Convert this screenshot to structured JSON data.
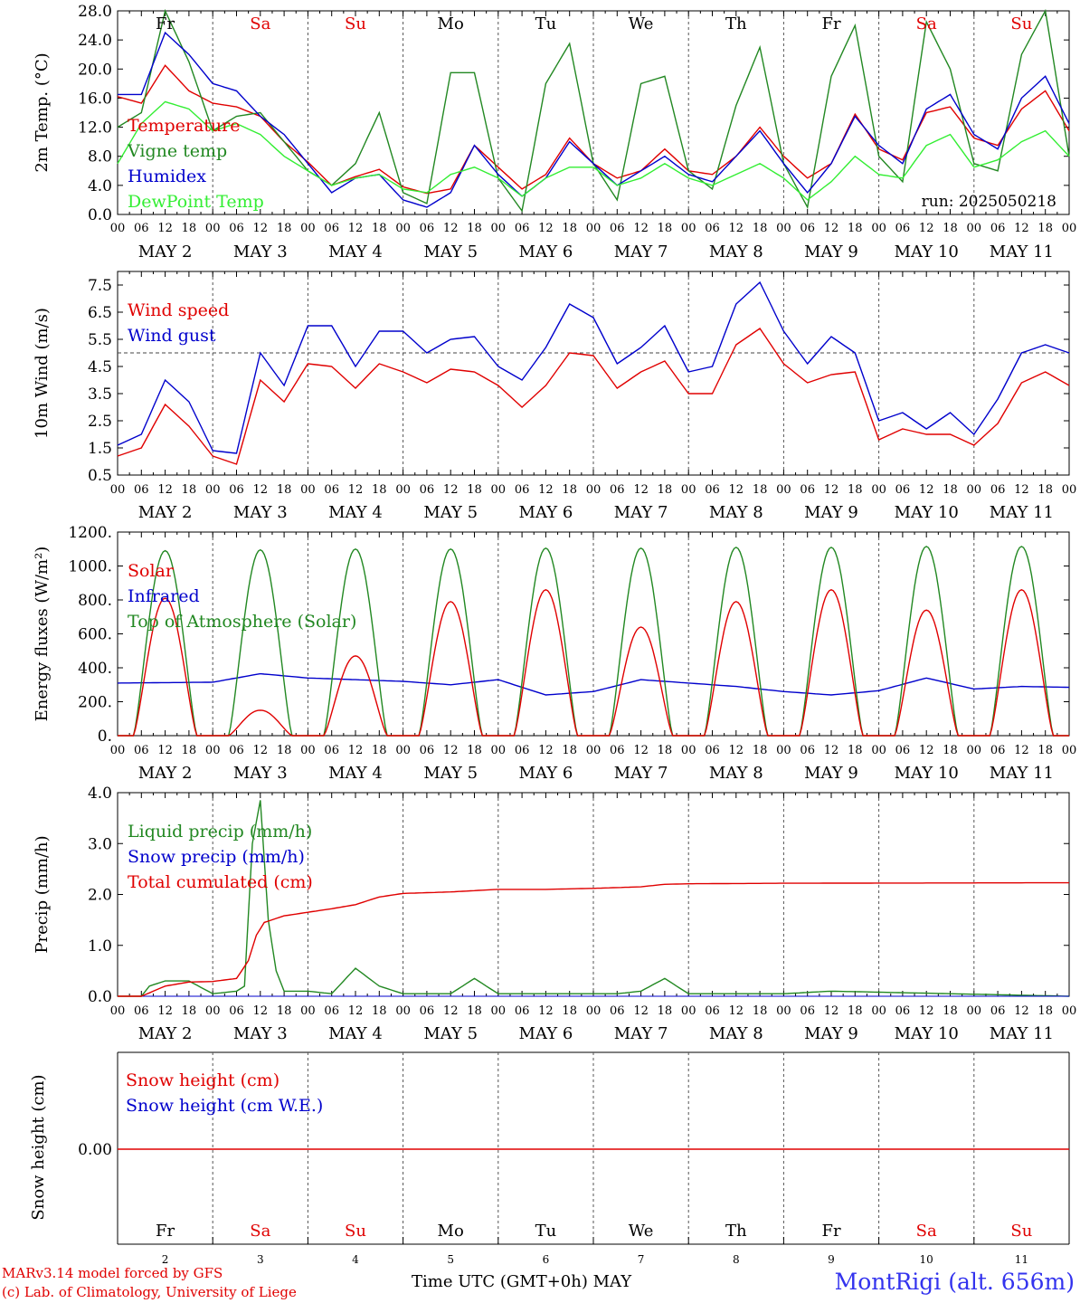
{
  "footer": {
    "model_line": "MARv3.14 model forced by GFS",
    "credit_line": "(c) Lab. of Climatology, University of Liege",
    "axis_title": "Time UTC (GMT+0h)",
    "month_label": "MAY",
    "station": "MontRigi (alt. 656m)"
  },
  "chart_data": [
    {
      "type": "line",
      "ylabel": "2m Temp. (°C)",
      "ylim": [
        0,
        28
      ],
      "yticks": [
        "0.0",
        "4.0",
        "8.0",
        "12.0",
        "16.0",
        "20.0",
        "24.0",
        "28.0"
      ],
      "grid": "vertical dashed at 00 UTC",
      "day_labels": [
        "Fr",
        "Sa",
        "Su",
        "Mo",
        "Tu",
        "We",
        "Th",
        "Fr",
        "Sa",
        "Su"
      ],
      "day_label_colors": [
        "#000000",
        "#e00000",
        "#e00000",
        "#000000",
        "#000000",
        "#000000",
        "#000000",
        "#000000",
        "#e00000",
        "#e00000"
      ],
      "date_labels": [
        "MAY 2",
        "MAY 3",
        "MAY 4",
        "MAY 5",
        "MAY 6",
        "MAY 7",
        "MAY 8",
        "MAY 9",
        "MAY 10",
        "MAY 11"
      ],
      "hour_ticks": [
        "00",
        "06",
        "12",
        "18"
      ],
      "annotation": "run: 2025050218",
      "x_hours": [
        0,
        6,
        12,
        18,
        24,
        30,
        36,
        42,
        48,
        54,
        60,
        66,
        72,
        78,
        84,
        90,
        96,
        102,
        108,
        114,
        120,
        126,
        132,
        138,
        144,
        150,
        156,
        162,
        168,
        174,
        180,
        186,
        192,
        198,
        204,
        210,
        216,
        222,
        228,
        234,
        240
      ],
      "series": [
        {
          "name": "Temperature",
          "color": "#e00000",
          "values": [
            16.2,
            15.3,
            20.5,
            17.0,
            15.3,
            14.8,
            13.5,
            10.0,
            7.2,
            4.0,
            5.2,
            6.2,
            3.8,
            2.9,
            3.5,
            9.5,
            6.5,
            3.5,
            5.5,
            10.5,
            7.0,
            5.0,
            6.0,
            9.0,
            6.0,
            5.5,
            8.0,
            12.0,
            8.0,
            5.0,
            7.0,
            13.8,
            9.0,
            7.5,
            14.0,
            14.8,
            10.5,
            9.5,
            14.5,
            17.0,
            11.5
          ]
        },
        {
          "name": "Vigne temp",
          "color": "#228822",
          "values": [
            12.0,
            14.0,
            28.0,
            21.0,
            11.5,
            13.5,
            14.0,
            10.0,
            6.0,
            4.0,
            7.0,
            14.0,
            3.0,
            1.5,
            19.5,
            19.5,
            5.0,
            0.5,
            18.0,
            23.5,
            7.0,
            2.0,
            18.0,
            19.0,
            6.0,
            3.5,
            15.0,
            23.0,
            7.0,
            1.0,
            19.0,
            26.0,
            8.0,
            4.5,
            26.5,
            20.0,
            7.0,
            6.0,
            22.0,
            28.0,
            8.0
          ]
        },
        {
          "name": "Humidex",
          "color": "#0000cc",
          "values": [
            16.5,
            16.5,
            25.0,
            22.0,
            18.0,
            17.0,
            13.5,
            11.0,
            7.0,
            3.0,
            5.0,
            5.5,
            2.0,
            1.0,
            3.0,
            9.5,
            5.5,
            2.5,
            5.0,
            10.0,
            7.0,
            4.0,
            6.0,
            8.0,
            5.5,
            4.5,
            8.0,
            11.5,
            7.0,
            3.0,
            7.0,
            13.5,
            9.5,
            7.0,
            14.5,
            16.5,
            11.0,
            9.0,
            16.0,
            19.0,
            12.5
          ]
        },
        {
          "name": "DewPoint Temp",
          "color": "#33ee33",
          "values": [
            7.0,
            12.5,
            15.5,
            14.5,
            11.5,
            12.5,
            11.0,
            8.0,
            6.0,
            4.0,
            5.0,
            5.5,
            3.5,
            3.0,
            5.5,
            6.5,
            5.0,
            2.5,
            5.0,
            6.5,
            6.5,
            4.0,
            5.0,
            7.0,
            5.0,
            4.0,
            5.5,
            7.0,
            5.0,
            2.0,
            4.5,
            8.0,
            5.5,
            5.0,
            9.5,
            11.0,
            6.5,
            7.5,
            10.0,
            11.5,
            8.0
          ]
        }
      ]
    },
    {
      "type": "line",
      "ylabel": "10m Wind (m/s)",
      "ylim": [
        0.5,
        8.0
      ],
      "yticks": [
        "0.5",
        "1.5",
        "2.5",
        "3.5",
        "4.5",
        "5.5",
        "6.5",
        "7.5"
      ],
      "reference_line": 5.0,
      "date_labels": [
        "MAY 2",
        "MAY 3",
        "MAY 4",
        "MAY 5",
        "MAY 6",
        "MAY 7",
        "MAY 8",
        "MAY 9",
        "MAY 10",
        "MAY 11"
      ],
      "hour_ticks": [
        "00",
        "06",
        "12",
        "18"
      ],
      "x_hours": [
        0,
        6,
        12,
        18,
        24,
        30,
        36,
        42,
        48,
        54,
        60,
        66,
        72,
        78,
        84,
        90,
        96,
        102,
        108,
        114,
        120,
        126,
        132,
        138,
        144,
        150,
        156,
        162,
        168,
        174,
        180,
        186,
        192,
        198,
        204,
        210,
        216,
        222,
        228,
        234,
        240
      ],
      "series": [
        {
          "name": "Wind speed",
          "color": "#e00000",
          "values": [
            1.2,
            1.5,
            3.1,
            2.3,
            1.2,
            0.9,
            4.0,
            3.2,
            4.6,
            4.5,
            3.7,
            4.6,
            4.3,
            3.9,
            4.4,
            4.3,
            3.8,
            3.0,
            3.8,
            5.0,
            4.9,
            3.7,
            4.3,
            4.7,
            3.5,
            3.5,
            5.3,
            5.9,
            4.6,
            3.9,
            4.2,
            4.3,
            1.8,
            2.2,
            2.0,
            2.0,
            1.6,
            2.4,
            3.9,
            4.3,
            3.8
          ]
        },
        {
          "name": "Wind gust",
          "color": "#0000cc",
          "values": [
            1.6,
            2.0,
            4.0,
            3.2,
            1.4,
            1.3,
            5.0,
            3.8,
            6.0,
            6.0,
            4.5,
            5.8,
            5.8,
            5.0,
            5.5,
            5.6,
            4.5,
            4.0,
            5.2,
            6.8,
            6.3,
            4.6,
            5.2,
            6.0,
            4.3,
            4.5,
            6.8,
            7.6,
            5.8,
            4.6,
            5.6,
            5.0,
            2.5,
            2.8,
            2.2,
            2.8,
            2.0,
            3.3,
            5.0,
            5.3,
            5.0
          ]
        }
      ]
    },
    {
      "type": "line",
      "ylabel": "Energy fluxes (W/m²)",
      "ylim": [
        0,
        1200
      ],
      "yticks": [
        "0.",
        "200.",
        "400.",
        "600.",
        "800.",
        "1000.",
        "1200."
      ],
      "date_labels": [
        "MAY 2",
        "MAY 3",
        "MAY 4",
        "MAY 5",
        "MAY 6",
        "MAY 7",
        "MAY 8",
        "MAY 9",
        "MAY 10",
        "MAY 11"
      ],
      "hour_ticks": [
        "00",
        "06",
        "12",
        "18"
      ],
      "daily_peaks": {
        "solar": [
          810,
          150,
          470,
          790,
          860,
          640,
          790,
          860,
          740,
          860
        ],
        "toa": [
          1090,
          1095,
          1100,
          1100,
          1105,
          1105,
          1110,
          1110,
          1115,
          1115
        ]
      },
      "series": [
        {
          "name": "Solar",
          "color": "#e00000"
        },
        {
          "name": "Infrared",
          "color": "#0000cc",
          "x_hours": [
            0,
            24,
            36,
            48,
            72,
            84,
            96,
            108,
            120,
            132,
            144,
            156,
            168,
            180,
            192,
            204,
            216,
            228,
            240
          ],
          "values": [
            310,
            315,
            365,
            340,
            320,
            300,
            330,
            240,
            260,
            330,
            310,
            290,
            260,
            240,
            265,
            340,
            275,
            290,
            285
          ]
        },
        {
          "name": "Top of Atmosphere (Solar)",
          "color": "#228822"
        }
      ]
    },
    {
      "type": "line",
      "ylabel": "Precip (mm/h)",
      "ylim": [
        0,
        4.0
      ],
      "yticks": [
        "0.0",
        "1.0",
        "2.0",
        "3.0",
        "4.0"
      ],
      "date_labels": [
        "MAY 2",
        "MAY 3",
        "MAY 4",
        "MAY 5",
        "MAY 6",
        "MAY 7",
        "MAY 8",
        "MAY 9",
        "MAY 10",
        "MAY 11"
      ],
      "hour_ticks": [
        "00",
        "06",
        "12",
        "18"
      ],
      "series": [
        {
          "name": "Liquid precip (mm/h)",
          "color": "#228822",
          "x_hours": [
            0,
            6,
            8,
            12,
            18,
            24,
            30,
            32,
            34,
            36,
            38,
            40,
            42,
            48,
            54,
            60,
            66,
            72,
            84,
            90,
            96,
            120,
            126,
            132,
            138,
            144,
            168,
            180,
            240
          ],
          "values": [
            0,
            0,
            0.2,
            0.3,
            0.3,
            0.05,
            0.1,
            0.2,
            3.0,
            3.85,
            1.5,
            0.5,
            0.1,
            0.1,
            0.05,
            0.55,
            0.2,
            0.05,
            0.05,
            0.35,
            0.05,
            0.05,
            0.05,
            0.1,
            0.35,
            0.05,
            0.05,
            0.1,
            0
          ]
        },
        {
          "name": "Snow precip (mm/h)",
          "color": "#0000cc"
        },
        {
          "name": "Total cumulated (cm)",
          "color": "#e00000",
          "x_hours": [
            0,
            6,
            12,
            18,
            24,
            30,
            33,
            35,
            37,
            42,
            48,
            54,
            60,
            66,
            72,
            84,
            96,
            108,
            120,
            132,
            138,
            144,
            168,
            240
          ],
          "values": [
            0,
            0,
            0.2,
            0.28,
            0.29,
            0.35,
            0.7,
            1.2,
            1.45,
            1.58,
            1.65,
            1.72,
            1.8,
            1.95,
            2.02,
            2.05,
            2.1,
            2.1,
            2.12,
            2.15,
            2.2,
            2.21,
            2.22,
            2.23
          ]
        }
      ]
    },
    {
      "type": "line",
      "ylabel": "Snow height (cm)",
      "yticks": [
        "0.00"
      ],
      "day_labels": [
        "Fr",
        "Sa",
        "Su",
        "Mo",
        "Tu",
        "We",
        "Th",
        "Fr",
        "Sa",
        "Su"
      ],
      "day_numbers": [
        "2",
        "3",
        "4",
        "5",
        "6",
        "7",
        "8",
        "9",
        "10",
        "11"
      ],
      "series": [
        {
          "name": "Snow height (cm)",
          "color": "#e00000",
          "values": [
            0,
            0
          ]
        },
        {
          "name": "Snow height (cm W.E.)",
          "color": "#0000cc"
        }
      ]
    }
  ]
}
